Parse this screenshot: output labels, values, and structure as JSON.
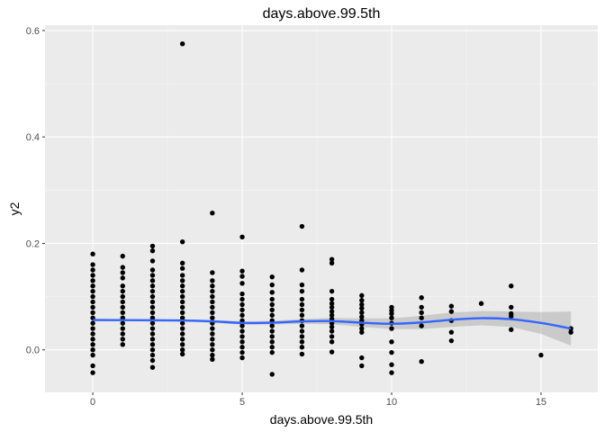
{
  "chart_data": {
    "type": "scatter",
    "title": "days.above.99.5th",
    "xlabel": "days.above.99.5th",
    "ylabel": "y2",
    "xlim": [
      -1.6,
      16.9
    ],
    "ylim": [
      -0.08,
      0.61
    ],
    "x_ticks": [
      0,
      5,
      10,
      15
    ],
    "x_tick_labels": [
      "0",
      "5",
      "10",
      "15"
    ],
    "y_ticks": [
      0.0,
      0.2,
      0.4,
      0.6
    ],
    "y_tick_labels": [
      "0.0",
      "0.2",
      "0.4",
      "0.6"
    ],
    "grid": true,
    "points": [
      {
        "x": 0,
        "y": 0.18
      },
      {
        "x": 0,
        "y": 0.16
      },
      {
        "x": 0,
        "y": 0.15
      },
      {
        "x": 0,
        "y": 0.14
      },
      {
        "x": 0,
        "y": 0.13
      },
      {
        "x": 0,
        "y": 0.12
      },
      {
        "x": 0,
        "y": 0.11
      },
      {
        "x": 0,
        "y": 0.1
      },
      {
        "x": 0,
        "y": 0.09
      },
      {
        "x": 0,
        "y": 0.08
      },
      {
        "x": 0,
        "y": 0.07
      },
      {
        "x": 0,
        "y": 0.06
      },
      {
        "x": 0,
        "y": 0.05
      },
      {
        "x": 0,
        "y": 0.04
      },
      {
        "x": 0,
        "y": 0.03
      },
      {
        "x": 0,
        "y": 0.02
      },
      {
        "x": 0,
        "y": 0.01
      },
      {
        "x": 0,
        "y": 0.0
      },
      {
        "x": 0,
        "y": -0.01
      },
      {
        "x": 0,
        "y": -0.03
      },
      {
        "x": 0,
        "y": -0.043
      },
      {
        "x": 1,
        "y": 0.176
      },
      {
        "x": 1,
        "y": 0.155
      },
      {
        "x": 1,
        "y": 0.145
      },
      {
        "x": 1,
        "y": 0.135
      },
      {
        "x": 1,
        "y": 0.12
      },
      {
        "x": 1,
        "y": 0.11
      },
      {
        "x": 1,
        "y": 0.1
      },
      {
        "x": 1,
        "y": 0.09
      },
      {
        "x": 1,
        "y": 0.08
      },
      {
        "x": 1,
        "y": 0.07
      },
      {
        "x": 1,
        "y": 0.06
      },
      {
        "x": 1,
        "y": 0.05
      },
      {
        "x": 1,
        "y": 0.04
      },
      {
        "x": 1,
        "y": 0.03
      },
      {
        "x": 1,
        "y": 0.02
      },
      {
        "x": 1,
        "y": 0.01
      },
      {
        "x": 2,
        "y": 0.195
      },
      {
        "x": 2,
        "y": 0.186
      },
      {
        "x": 2,
        "y": 0.167
      },
      {
        "x": 2,
        "y": 0.15
      },
      {
        "x": 2,
        "y": 0.14
      },
      {
        "x": 2,
        "y": 0.13
      },
      {
        "x": 2,
        "y": 0.12
      },
      {
        "x": 2,
        "y": 0.11
      },
      {
        "x": 2,
        "y": 0.1
      },
      {
        "x": 2,
        "y": 0.09
      },
      {
        "x": 2,
        "y": 0.08
      },
      {
        "x": 2,
        "y": 0.07
      },
      {
        "x": 2,
        "y": 0.06
      },
      {
        "x": 2,
        "y": 0.05
      },
      {
        "x": 2,
        "y": 0.04
      },
      {
        "x": 2,
        "y": 0.03
      },
      {
        "x": 2,
        "y": 0.02
      },
      {
        "x": 2,
        "y": 0.01
      },
      {
        "x": 2,
        "y": 0.0
      },
      {
        "x": 2,
        "y": -0.01
      },
      {
        "x": 2,
        "y": -0.02
      },
      {
        "x": 2,
        "y": -0.033
      },
      {
        "x": 3,
        "y": 0.575
      },
      {
        "x": 3,
        "y": 0.203
      },
      {
        "x": 3,
        "y": 0.163
      },
      {
        "x": 3,
        "y": 0.153
      },
      {
        "x": 3,
        "y": 0.14
      },
      {
        "x": 3,
        "y": 0.13
      },
      {
        "x": 3,
        "y": 0.12
      },
      {
        "x": 3,
        "y": 0.11
      },
      {
        "x": 3,
        "y": 0.1
      },
      {
        "x": 3,
        "y": 0.09
      },
      {
        "x": 3,
        "y": 0.08
      },
      {
        "x": 3,
        "y": 0.07
      },
      {
        "x": 3,
        "y": 0.06
      },
      {
        "x": 3,
        "y": 0.05
      },
      {
        "x": 3,
        "y": 0.04
      },
      {
        "x": 3,
        "y": 0.03
      },
      {
        "x": 3,
        "y": 0.02
      },
      {
        "x": 3,
        "y": 0.01
      },
      {
        "x": 3,
        "y": 0.0
      },
      {
        "x": 3,
        "y": -0.008
      },
      {
        "x": 4,
        "y": 0.257
      },
      {
        "x": 4,
        "y": 0.145
      },
      {
        "x": 4,
        "y": 0.13
      },
      {
        "x": 4,
        "y": 0.12
      },
      {
        "x": 4,
        "y": 0.11
      },
      {
        "x": 4,
        "y": 0.1
      },
      {
        "x": 4,
        "y": 0.09
      },
      {
        "x": 4,
        "y": 0.08
      },
      {
        "x": 4,
        "y": 0.07
      },
      {
        "x": 4,
        "y": 0.06
      },
      {
        "x": 4,
        "y": 0.05
      },
      {
        "x": 4,
        "y": 0.04
      },
      {
        "x": 4,
        "y": 0.03
      },
      {
        "x": 4,
        "y": 0.02
      },
      {
        "x": 4,
        "y": 0.01
      },
      {
        "x": 4,
        "y": 0.0
      },
      {
        "x": 4,
        "y": -0.01
      },
      {
        "x": 4,
        "y": -0.018
      },
      {
        "x": 5,
        "y": 0.212
      },
      {
        "x": 5,
        "y": 0.148
      },
      {
        "x": 5,
        "y": 0.138
      },
      {
        "x": 5,
        "y": 0.125
      },
      {
        "x": 5,
        "y": 0.105
      },
      {
        "x": 5,
        "y": 0.095
      },
      {
        "x": 5,
        "y": 0.085
      },
      {
        "x": 5,
        "y": 0.075
      },
      {
        "x": 5,
        "y": 0.065
      },
      {
        "x": 5,
        "y": 0.055
      },
      {
        "x": 5,
        "y": 0.045
      },
      {
        "x": 5,
        "y": 0.035
      },
      {
        "x": 5,
        "y": 0.025
      },
      {
        "x": 5,
        "y": 0.015
      },
      {
        "x": 5,
        "y": 0.005
      },
      {
        "x": 5,
        "y": -0.005
      },
      {
        "x": 5,
        "y": -0.015
      },
      {
        "x": 6,
        "y": 0.137
      },
      {
        "x": 6,
        "y": 0.122
      },
      {
        "x": 6,
        "y": 0.108
      },
      {
        "x": 6,
        "y": 0.095
      },
      {
        "x": 6,
        "y": 0.085
      },
      {
        "x": 6,
        "y": 0.075
      },
      {
        "x": 6,
        "y": 0.065
      },
      {
        "x": 6,
        "y": 0.055
      },
      {
        "x": 6,
        "y": 0.045
      },
      {
        "x": 6,
        "y": 0.035
      },
      {
        "x": 6,
        "y": 0.025
      },
      {
        "x": 6,
        "y": 0.015
      },
      {
        "x": 6,
        "y": 0.005
      },
      {
        "x": 6,
        "y": -0.005
      },
      {
        "x": 6,
        "y": -0.046
      },
      {
        "x": 7,
        "y": 0.232
      },
      {
        "x": 7,
        "y": 0.15
      },
      {
        "x": 7,
        "y": 0.122
      },
      {
        "x": 7,
        "y": 0.11
      },
      {
        "x": 7,
        "y": 0.095
      },
      {
        "x": 7,
        "y": 0.085
      },
      {
        "x": 7,
        "y": 0.075
      },
      {
        "x": 7,
        "y": 0.065
      },
      {
        "x": 7,
        "y": 0.055
      },
      {
        "x": 7,
        "y": 0.045
      },
      {
        "x": 7,
        "y": 0.035
      },
      {
        "x": 7,
        "y": 0.025
      },
      {
        "x": 7,
        "y": 0.015
      },
      {
        "x": 7,
        "y": 0.005
      },
      {
        "x": 7,
        "y": -0.008
      },
      {
        "x": 8,
        "y": 0.17
      },
      {
        "x": 8,
        "y": 0.163
      },
      {
        "x": 8,
        "y": 0.11
      },
      {
        "x": 8,
        "y": 0.095
      },
      {
        "x": 8,
        "y": 0.087
      },
      {
        "x": 8,
        "y": 0.08
      },
      {
        "x": 8,
        "y": 0.072
      },
      {
        "x": 8,
        "y": 0.065
      },
      {
        "x": 8,
        "y": 0.058
      },
      {
        "x": 8,
        "y": 0.05
      },
      {
        "x": 8,
        "y": 0.043
      },
      {
        "x": 8,
        "y": 0.035
      },
      {
        "x": 8,
        "y": 0.025
      },
      {
        "x": 8,
        "y": 0.015
      },
      {
        "x": 8,
        "y": -0.004
      },
      {
        "x": 9,
        "y": 0.102
      },
      {
        "x": 9,
        "y": 0.093
      },
      {
        "x": 9,
        "y": 0.085
      },
      {
        "x": 9,
        "y": 0.078
      },
      {
        "x": 9,
        "y": 0.07
      },
      {
        "x": 9,
        "y": 0.062
      },
      {
        "x": 9,
        "y": 0.055
      },
      {
        "x": 9,
        "y": 0.048
      },
      {
        "x": 9,
        "y": 0.04
      },
      {
        "x": 9,
        "y": 0.033
      },
      {
        "x": 9,
        "y": -0.015
      },
      {
        "x": 9,
        "y": -0.03
      },
      {
        "x": 10,
        "y": 0.08
      },
      {
        "x": 10,
        "y": 0.074
      },
      {
        "x": 10,
        "y": 0.068
      },
      {
        "x": 10,
        "y": 0.06
      },
      {
        "x": 10,
        "y": 0.05
      },
      {
        "x": 10,
        "y": 0.04
      },
      {
        "x": 10,
        "y": 0.015
      },
      {
        "x": 10,
        "y": -0.005
      },
      {
        "x": 10,
        "y": -0.028
      },
      {
        "x": 10,
        "y": -0.043
      },
      {
        "x": 11,
        "y": 0.098
      },
      {
        "x": 11,
        "y": 0.08
      },
      {
        "x": 11,
        "y": 0.07
      },
      {
        "x": 11,
        "y": 0.06
      },
      {
        "x": 11,
        "y": 0.045
      },
      {
        "x": 11,
        "y": -0.022
      },
      {
        "x": 12,
        "y": 0.082
      },
      {
        "x": 12,
        "y": 0.072
      },
      {
        "x": 12,
        "y": 0.055
      },
      {
        "x": 12,
        "y": 0.033
      },
      {
        "x": 12,
        "y": 0.017
      },
      {
        "x": 13,
        "y": 0.087
      },
      {
        "x": 14,
        "y": 0.12
      },
      {
        "x": 14,
        "y": 0.08
      },
      {
        "x": 14,
        "y": 0.068
      },
      {
        "x": 14,
        "y": 0.063
      },
      {
        "x": 14,
        "y": 0.038
      },
      {
        "x": 15,
        "y": -0.01
      },
      {
        "x": 16,
        "y": 0.04
      },
      {
        "x": 16,
        "y": 0.033
      }
    ],
    "smooth_line": {
      "color": "#3366ff",
      "fit": [
        {
          "x": 0,
          "y": 0.056
        },
        {
          "x": 1,
          "y": 0.0558
        },
        {
          "x": 2,
          "y": 0.0555
        },
        {
          "x": 3,
          "y": 0.0552
        },
        {
          "x": 4,
          "y": 0.0535
        },
        {
          "x": 5,
          "y": 0.0505
        },
        {
          "x": 6,
          "y": 0.051
        },
        {
          "x": 7,
          "y": 0.0535
        },
        {
          "x": 8,
          "y": 0.054
        },
        {
          "x": 9,
          "y": 0.051
        },
        {
          "x": 10,
          "y": 0.049
        },
        {
          "x": 11,
          "y": 0.0515
        },
        {
          "x": 12,
          "y": 0.0565
        },
        {
          "x": 13,
          "y": 0.0595
        },
        {
          "x": 14,
          "y": 0.0575
        },
        {
          "x": 15,
          "y": 0.0505
        },
        {
          "x": 16,
          "y": 0.04
        }
      ],
      "band_upper": [
        0.0585,
        0.0578,
        0.0575,
        0.0575,
        0.056,
        0.0535,
        0.0545,
        0.058,
        0.06,
        0.059,
        0.059,
        0.064,
        0.07,
        0.073,
        0.072,
        0.071,
        0.072
      ],
      "band_lower": [
        0.0535,
        0.0538,
        0.0535,
        0.053,
        0.051,
        0.0475,
        0.0475,
        0.049,
        0.048,
        0.043,
        0.039,
        0.039,
        0.043,
        0.046,
        0.043,
        0.03,
        0.008
      ]
    }
  }
}
